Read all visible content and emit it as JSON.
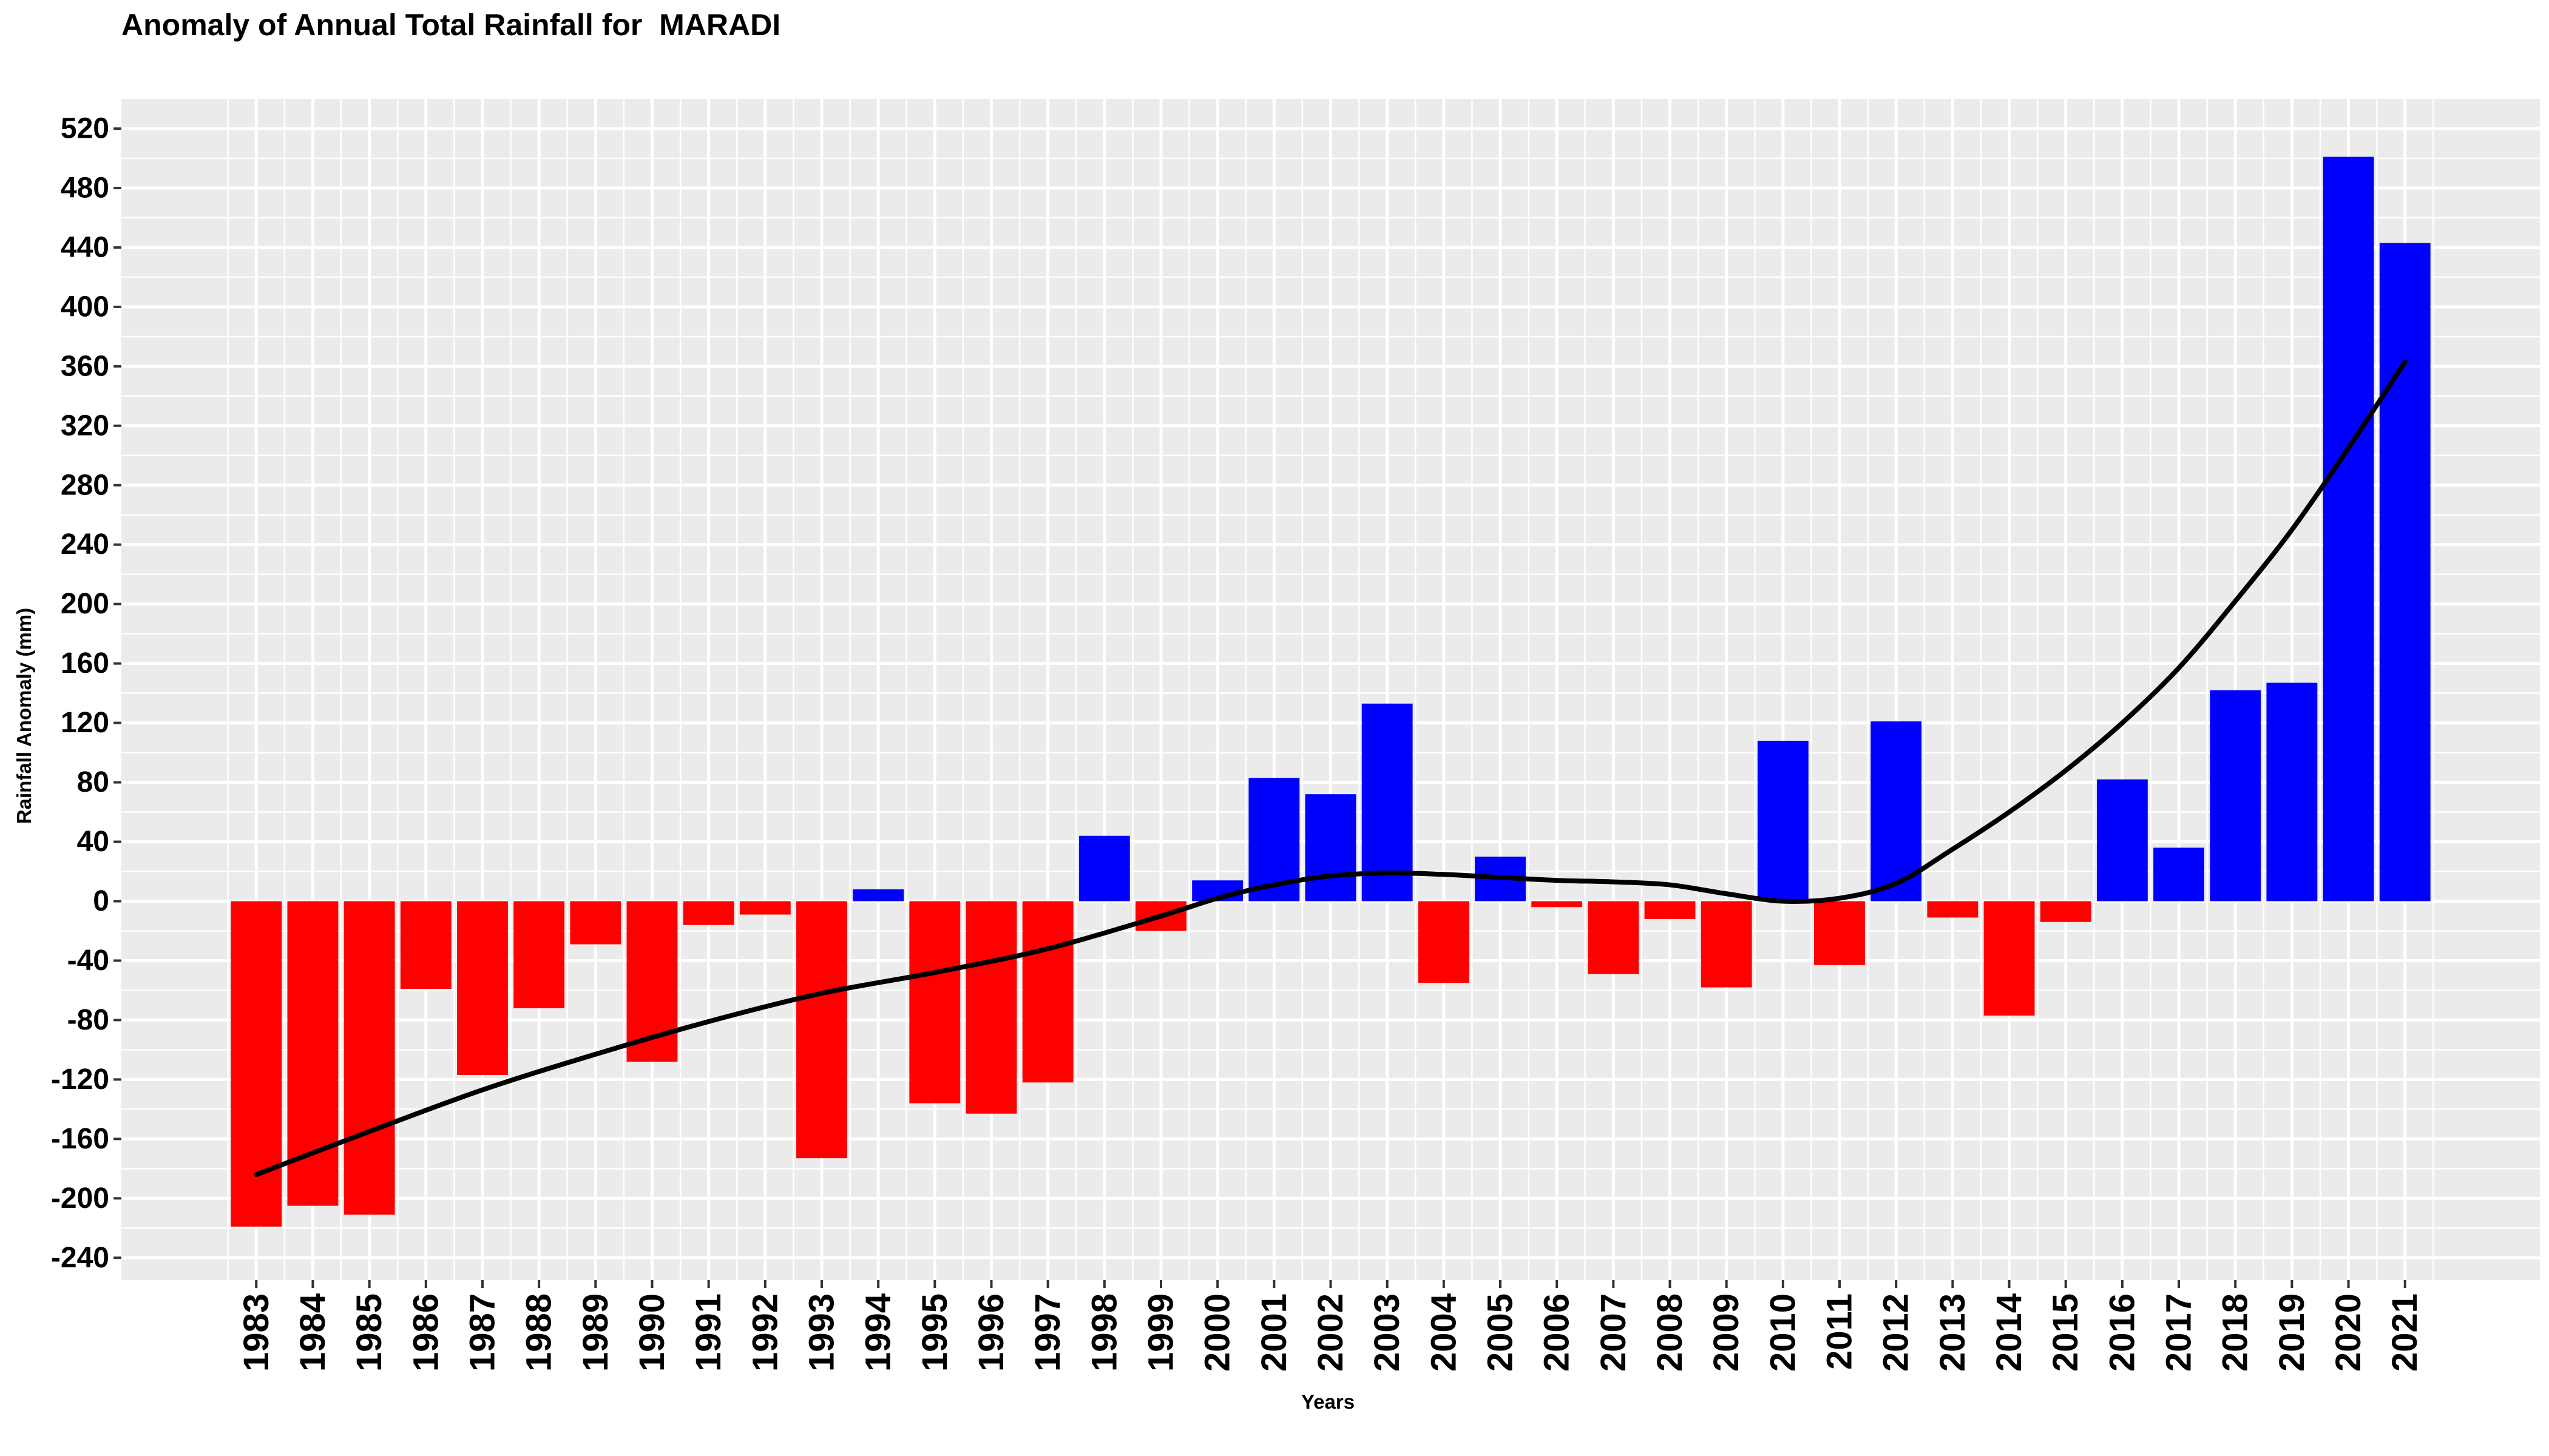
{
  "chart_data": {
    "type": "bar",
    "title": "Anomaly of Annual Total Rainfall for  MARADI",
    "xlabel": "Years",
    "ylabel": "Rainfall Anomaly (mm)",
    "ylim": [
      -255,
      540
    ],
    "yticks": [
      -240,
      -200,
      -160,
      -120,
      -80,
      -40,
      0,
      40,
      80,
      120,
      160,
      200,
      240,
      280,
      320,
      360,
      400,
      440,
      480,
      520
    ],
    "grid": true,
    "categories": [
      "1983",
      "1984",
      "1985",
      "1986",
      "1987",
      "1988",
      "1989",
      "1990",
      "1991",
      "1992",
      "1993",
      "1994",
      "1995",
      "1996",
      "1997",
      "1998",
      "1999",
      "2000",
      "2001",
      "2002",
      "2003",
      "2004",
      "2005",
      "2006",
      "2007",
      "2008",
      "2009",
      "2010",
      "2011",
      "2012",
      "2013",
      "2014",
      "2015",
      "2016",
      "2017",
      "2018",
      "2019",
      "2020",
      "2021"
    ],
    "values": [
      -219,
      -205,
      -211,
      -59,
      -117,
      -72,
      -29,
      -108,
      -16,
      -9,
      -173,
      8,
      -136,
      -143,
      -122,
      44,
      -20,
      14,
      83,
      72,
      133,
      -55,
      30,
      -4,
      -49,
      -12,
      -58,
      108,
      -43,
      121,
      -11,
      -77,
      -14,
      82,
      36,
      142,
      147,
      501,
      443
    ],
    "colors": {
      "positive": "#0000ff",
      "negative": "#ff0000",
      "trend": "#000000"
    },
    "trend": {
      "name": "",
      "x": [
        "1983",
        "1985",
        "1987",
        "1989",
        "1991",
        "1993",
        "1995",
        "1997",
        "1999",
        "2000",
        "2001",
        "2002",
        "2003",
        "2004",
        "2005",
        "2006",
        "2007",
        "2008",
        "2009",
        "2010",
        "2011",
        "2012",
        "2013",
        "2014",
        "2015",
        "2016",
        "2017",
        "2018",
        "2019",
        "2020",
        "2021"
      ],
      "values": [
        -184,
        -155,
        -127,
        -103,
        -81,
        -62,
        -48,
        -32,
        -10,
        2,
        11,
        17,
        19,
        18,
        16,
        14,
        13,
        11,
        5,
        0,
        2,
        12,
        35,
        60,
        88,
        120,
        157,
        202,
        250,
        305,
        363
      ]
    }
  }
}
